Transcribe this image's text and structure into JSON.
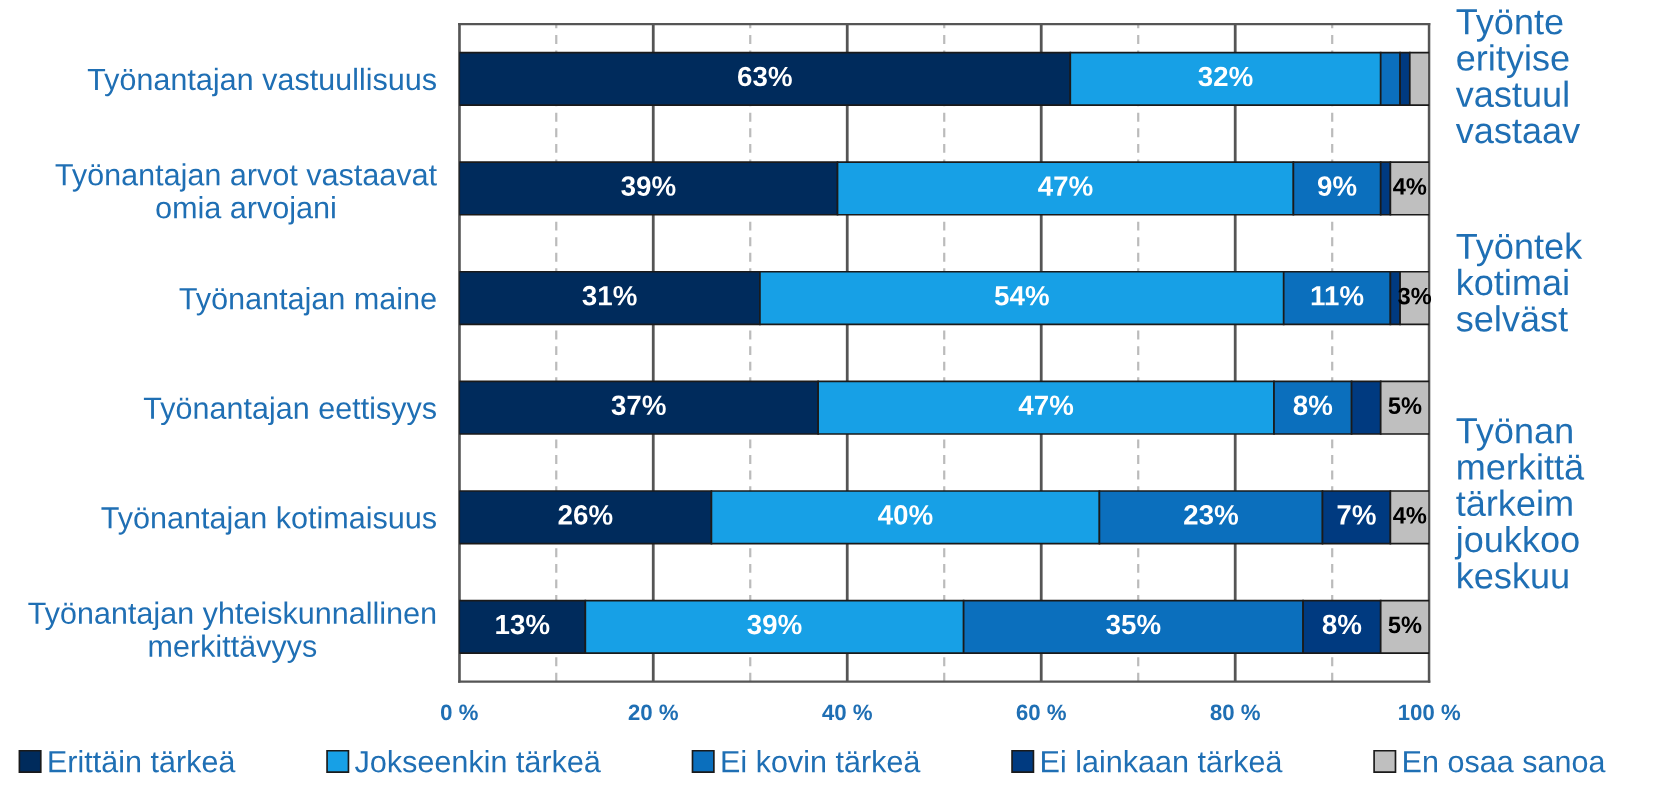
{
  "chart_data": {
    "type": "bar",
    "orientation": "horizontal",
    "stacked": true,
    "categories": [
      "Työnantajan vastuullisuus",
      "Työnantajan arvot vastaavat\nomia arvojani",
      "Työnantajan maine",
      "Työnantajan eettisyys",
      "Työnantajan kotimaisuus",
      "Työnantajan yhteiskunnallinen\nmerkittävyys"
    ],
    "series": [
      {
        "name": "Erittäin tärkeä",
        "color": "#002b5c",
        "values": [
          63,
          39,
          31,
          37,
          26,
          13
        ],
        "value_labels": [
          "63%",
          "39%",
          "31%",
          "37%",
          "26%",
          "13%"
        ]
      },
      {
        "name": "Jokseenkin tärkeä",
        "color": "#17a0e6",
        "values": [
          32,
          47,
          54,
          47,
          40,
          39
        ],
        "value_labels": [
          "32%",
          "47%",
          "54%",
          "47%",
          "40%",
          "39%"
        ]
      },
      {
        "name": "Ei kovin tärkeä",
        "color": "#0b6fbd",
        "values": [
          2,
          9,
          11,
          8,
          23,
          35
        ],
        "value_labels": [
          null,
          "9%",
          "11%",
          "8%",
          "23%",
          "35%"
        ]
      },
      {
        "name": "Ei lainkaan tärkeä",
        "color": "#003a80",
        "values": [
          1,
          1,
          1,
          3,
          7,
          8
        ],
        "value_labels": [
          null,
          null,
          null,
          null,
          "7%",
          "8%"
        ]
      },
      {
        "name": "En osaa sanoa",
        "color": "#bfbfbf",
        "values": [
          2,
          4,
          3,
          5,
          4,
          5
        ],
        "value_labels": [
          null,
          "4%",
          "3%",
          "5%",
          "4%",
          "5%"
        ]
      }
    ],
    "xlim": [
      0,
      100
    ],
    "xticks": [
      {
        "value": 0,
        "label": "0 %"
      },
      {
        "value": 10,
        "label": null
      },
      {
        "value": 20,
        "label": "20 %"
      },
      {
        "value": 30,
        "label": null
      },
      {
        "value": 40,
        "label": "40 %"
      },
      {
        "value": 50,
        "label": null
      },
      {
        "value": 60,
        "label": "60 %"
      },
      {
        "value": 70,
        "label": null
      },
      {
        "value": 80,
        "label": "80 %"
      },
      {
        "value": 90,
        "label": null
      },
      {
        "value": 100,
        "label": "100 %"
      }
    ],
    "grid": "x",
    "legend": "bottom",
    "annotations": [
      "Työnte\nerityise\nvastuul\nvastaav",
      "Työntek\nkotimai\nselväst",
      "Työnan\nmerkittä\ntärkeim\njoukkoo\nkeskuu"
    ]
  }
}
